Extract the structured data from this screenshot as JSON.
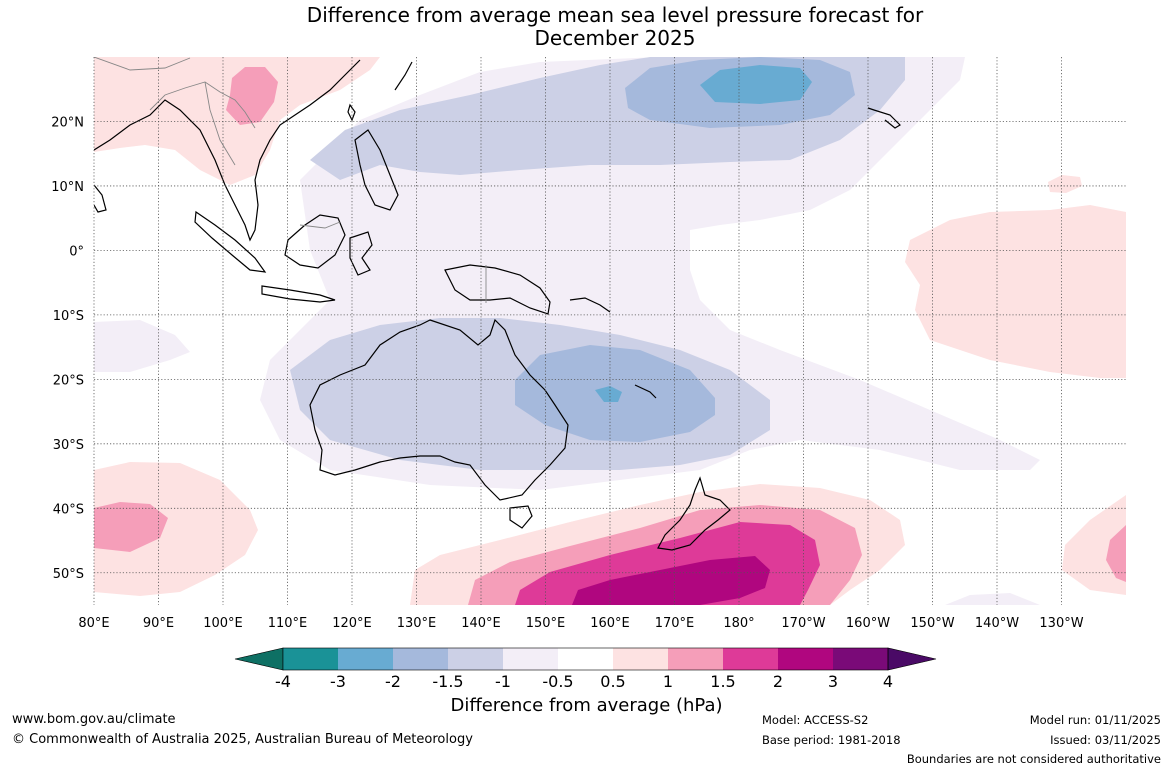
{
  "title": {
    "line1": "Difference from average mean sea level pressure forecast for",
    "line2": "December 2025"
  },
  "map": {
    "lat_labels": [
      "20°N",
      "10°N",
      "0°",
      "10°S",
      "20°S",
      "30°S",
      "40°S",
      "50°S"
    ],
    "lat_values": [
      20,
      10,
      0,
      -10,
      -20,
      -30,
      -40,
      -50
    ],
    "lon_labels": [
      "80°E",
      "90°E",
      "100°E",
      "110°E",
      "120°E",
      "130°E",
      "140°E",
      "150°E",
      "160°E",
      "170°E",
      "180°",
      "170°W",
      "160°W",
      "150°W",
      "140°W",
      "130°W"
    ],
    "lon_values": [
      80,
      90,
      100,
      110,
      120,
      130,
      140,
      150,
      160,
      170,
      180,
      190,
      200,
      210,
      220,
      230
    ],
    "extent": {
      "lon_min": 80,
      "lon_max": 240,
      "lat_min": -55,
      "lat_max": 30
    }
  },
  "colorbar": {
    "ticks": [
      "-4",
      "-3",
      "-2",
      "-1.5",
      "-1",
      "-0.5",
      "0.5",
      "1",
      "1.5",
      "2",
      "3",
      "4"
    ],
    "colors": [
      "#0e7064",
      "#1a9297",
      "#68abd2",
      "#a5b9dc",
      "#ccd0e6",
      "#f3eef7",
      "#ffffff",
      "#fde2e2",
      "#f59eb9",
      "#de3a98",
      "#b0067f",
      "#7a0a78",
      "#4a0a66"
    ],
    "label": "Difference from average (hPa)"
  },
  "footer": {
    "url": "www.bom.gov.au/climate",
    "copyright": "© Commonwealth of Australia 2025, Australian Bureau of Meteorology",
    "model": "Model: ACCESS-S2",
    "base_period": "Base period: 1981-2018",
    "model_run": "Model run: 01/11/2025",
    "issued": "Issued: 03/11/2025",
    "disclaimer": "Boundaries are not considered authoritative"
  }
}
